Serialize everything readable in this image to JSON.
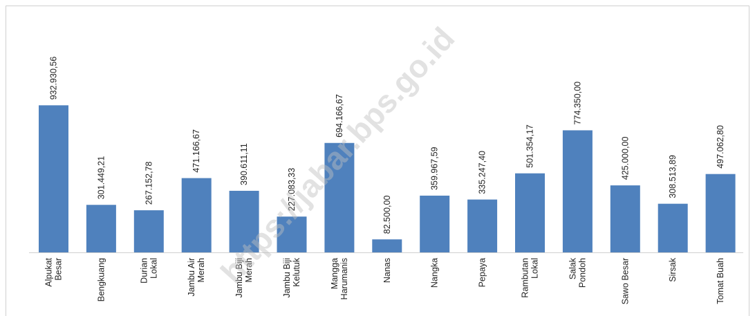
{
  "chart_data": {
    "type": "bar",
    "categories": [
      "Alpukat\nBesar",
      "Bengkuang",
      "Durian\nLokal",
      "Jambu Air\nMerah",
      "Jambu Biji\nMerah",
      "Jambu Biji\nKelutuk",
      "Mangga\nHarumanis",
      "Nanas",
      "Nangka",
      "Pepaya",
      "Rambutan\nLokal",
      "Salak\nPondoh",
      "Sawo Besar",
      "Sirsak",
      "Tomat Buah"
    ],
    "values": [
      932930.56,
      301449.21,
      267152.78,
      471166.67,
      390611.11,
      227083.33,
      694166.67,
      82500.0,
      359967.59,
      335247.4,
      501354.17,
      774350.0,
      425000.0,
      308513.89,
      497062.8
    ],
    "value_labels": [
      "932.930,56",
      "301.449,21",
      "267.152,78",
      "471.166,67",
      "390.611,11",
      "227.083,33",
      "694.166,67",
      "82.500,00",
      "359.967,59",
      "335.247,40",
      "501.354,17",
      "774.350,00",
      "425.000,00",
      "308.513,89",
      "497.062,80"
    ],
    "color": "#4f81bd",
    "ylim": [
      0,
      1000000
    ],
    "watermark": "https://jabar.bps.go.id"
  }
}
